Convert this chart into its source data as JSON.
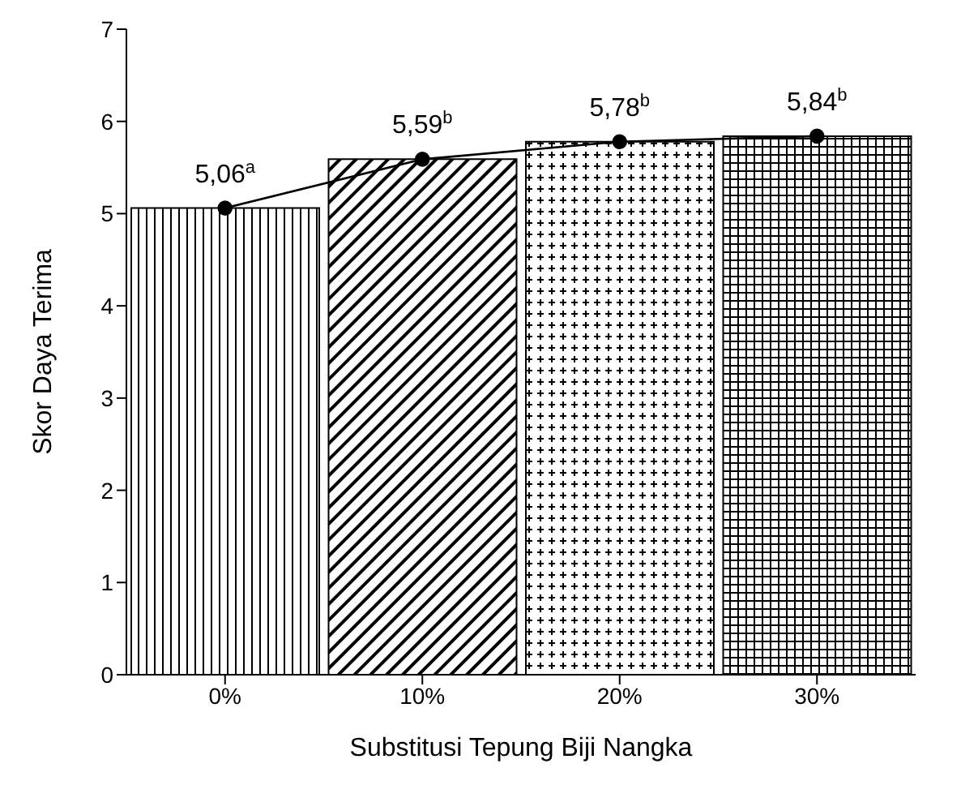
{
  "chart_data": {
    "type": "bar",
    "xlabel": "Substitusi Tepung Biji Nangka",
    "ylabel": "Skor Daya Terima",
    "categories": [
      "0%",
      "10%",
      "20%",
      "30%"
    ],
    "series": [
      {
        "color": "#000000",
        "values": [
          5.06,
          5.59,
          5.78,
          5.84
        ]
      },
      {
        "type": "line",
        "color": "#000000",
        "marker": "circle",
        "values": [
          5.06,
          5.59,
          5.78,
          5.84
        ],
        "value_labels": [
          "5,06$^{a}$",
          "5,59$^{b}$",
          "5,78$^{b}$",
          "5,84$^{b}$"
        ]
      }
    ],
    "ylim": [
      0,
      7
    ],
    "yticks": [
      0,
      1,
      2,
      3,
      4,
      5,
      6,
      7
    ],
    "grid": false,
    "legend": false
  }
}
